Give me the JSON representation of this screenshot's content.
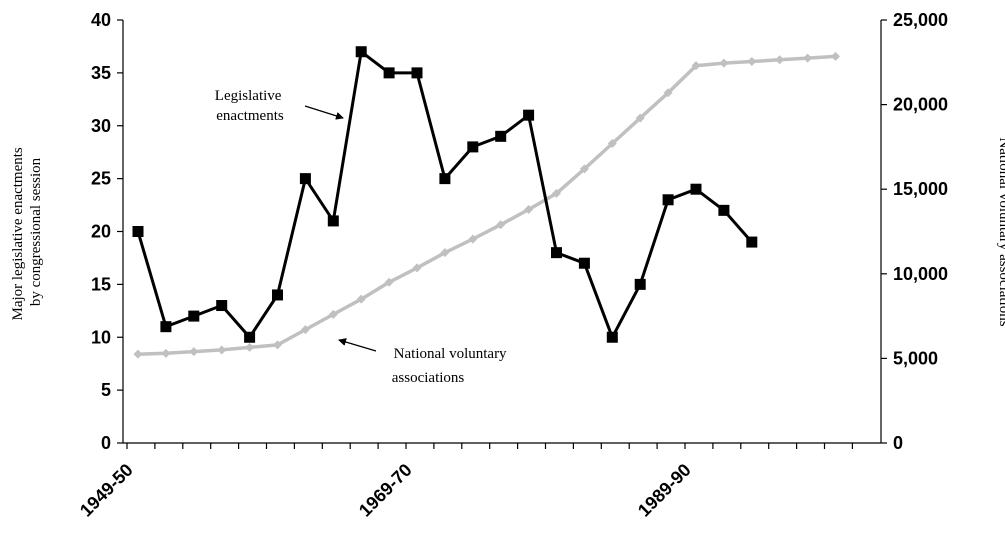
{
  "chart_data": {
    "type": "line",
    "ylabel_left": [
      "Major legislative enactments",
      "by congressional session"
    ],
    "ylabel_right": "National voluntary associations",
    "ylim_left": [
      0,
      40
    ],
    "yticks_left": [
      "0",
      "5",
      "10",
      "15",
      "20",
      "25",
      "30",
      "35",
      "40"
    ],
    "ylim_right": [
      0,
      25000
    ],
    "yticks_right": [
      "0",
      "5,000",
      "10,000",
      "15,000",
      "20,000",
      "25,000"
    ],
    "x_tick_labels": [
      {
        "label": "1949-50",
        "index": 0
      },
      {
        "label": "1969-70",
        "index": 10
      },
      {
        "label": "1989-90",
        "index": 20
      }
    ],
    "n_sessions": 26,
    "grid": false,
    "series": [
      {
        "name": "Legislative enactments",
        "axis": "left",
        "color": "#000000",
        "marker": "square",
        "start_index": 0,
        "values": [
          20,
          11,
          12,
          13,
          10,
          14,
          25,
          21,
          37,
          35,
          35,
          25,
          28,
          29,
          31,
          18,
          17,
          10,
          15,
          23,
          24,
          22,
          19
        ]
      },
      {
        "name": "National voluntary associations",
        "axis": "right",
        "color": "#c0c0c0",
        "marker": "diamond",
        "start_index": 0,
        "values": [
          5250,
          5300,
          5400,
          5500,
          5650,
          5800,
          6700,
          7600,
          8500,
          9500,
          10350,
          11250,
          12050,
          12900,
          13800,
          14750,
          16200,
          17700,
          19200,
          20700,
          22300,
          22450,
          22550,
          22650,
          22750,
          22850
        ]
      }
    ],
    "annotations": [
      {
        "text": [
          "Legislative",
          "enactments"
        ],
        "points_to": "Legislative enactments"
      },
      {
        "text": [
          "National voluntary",
          "associations"
        ],
        "points_to": "National voluntary associations"
      }
    ]
  }
}
